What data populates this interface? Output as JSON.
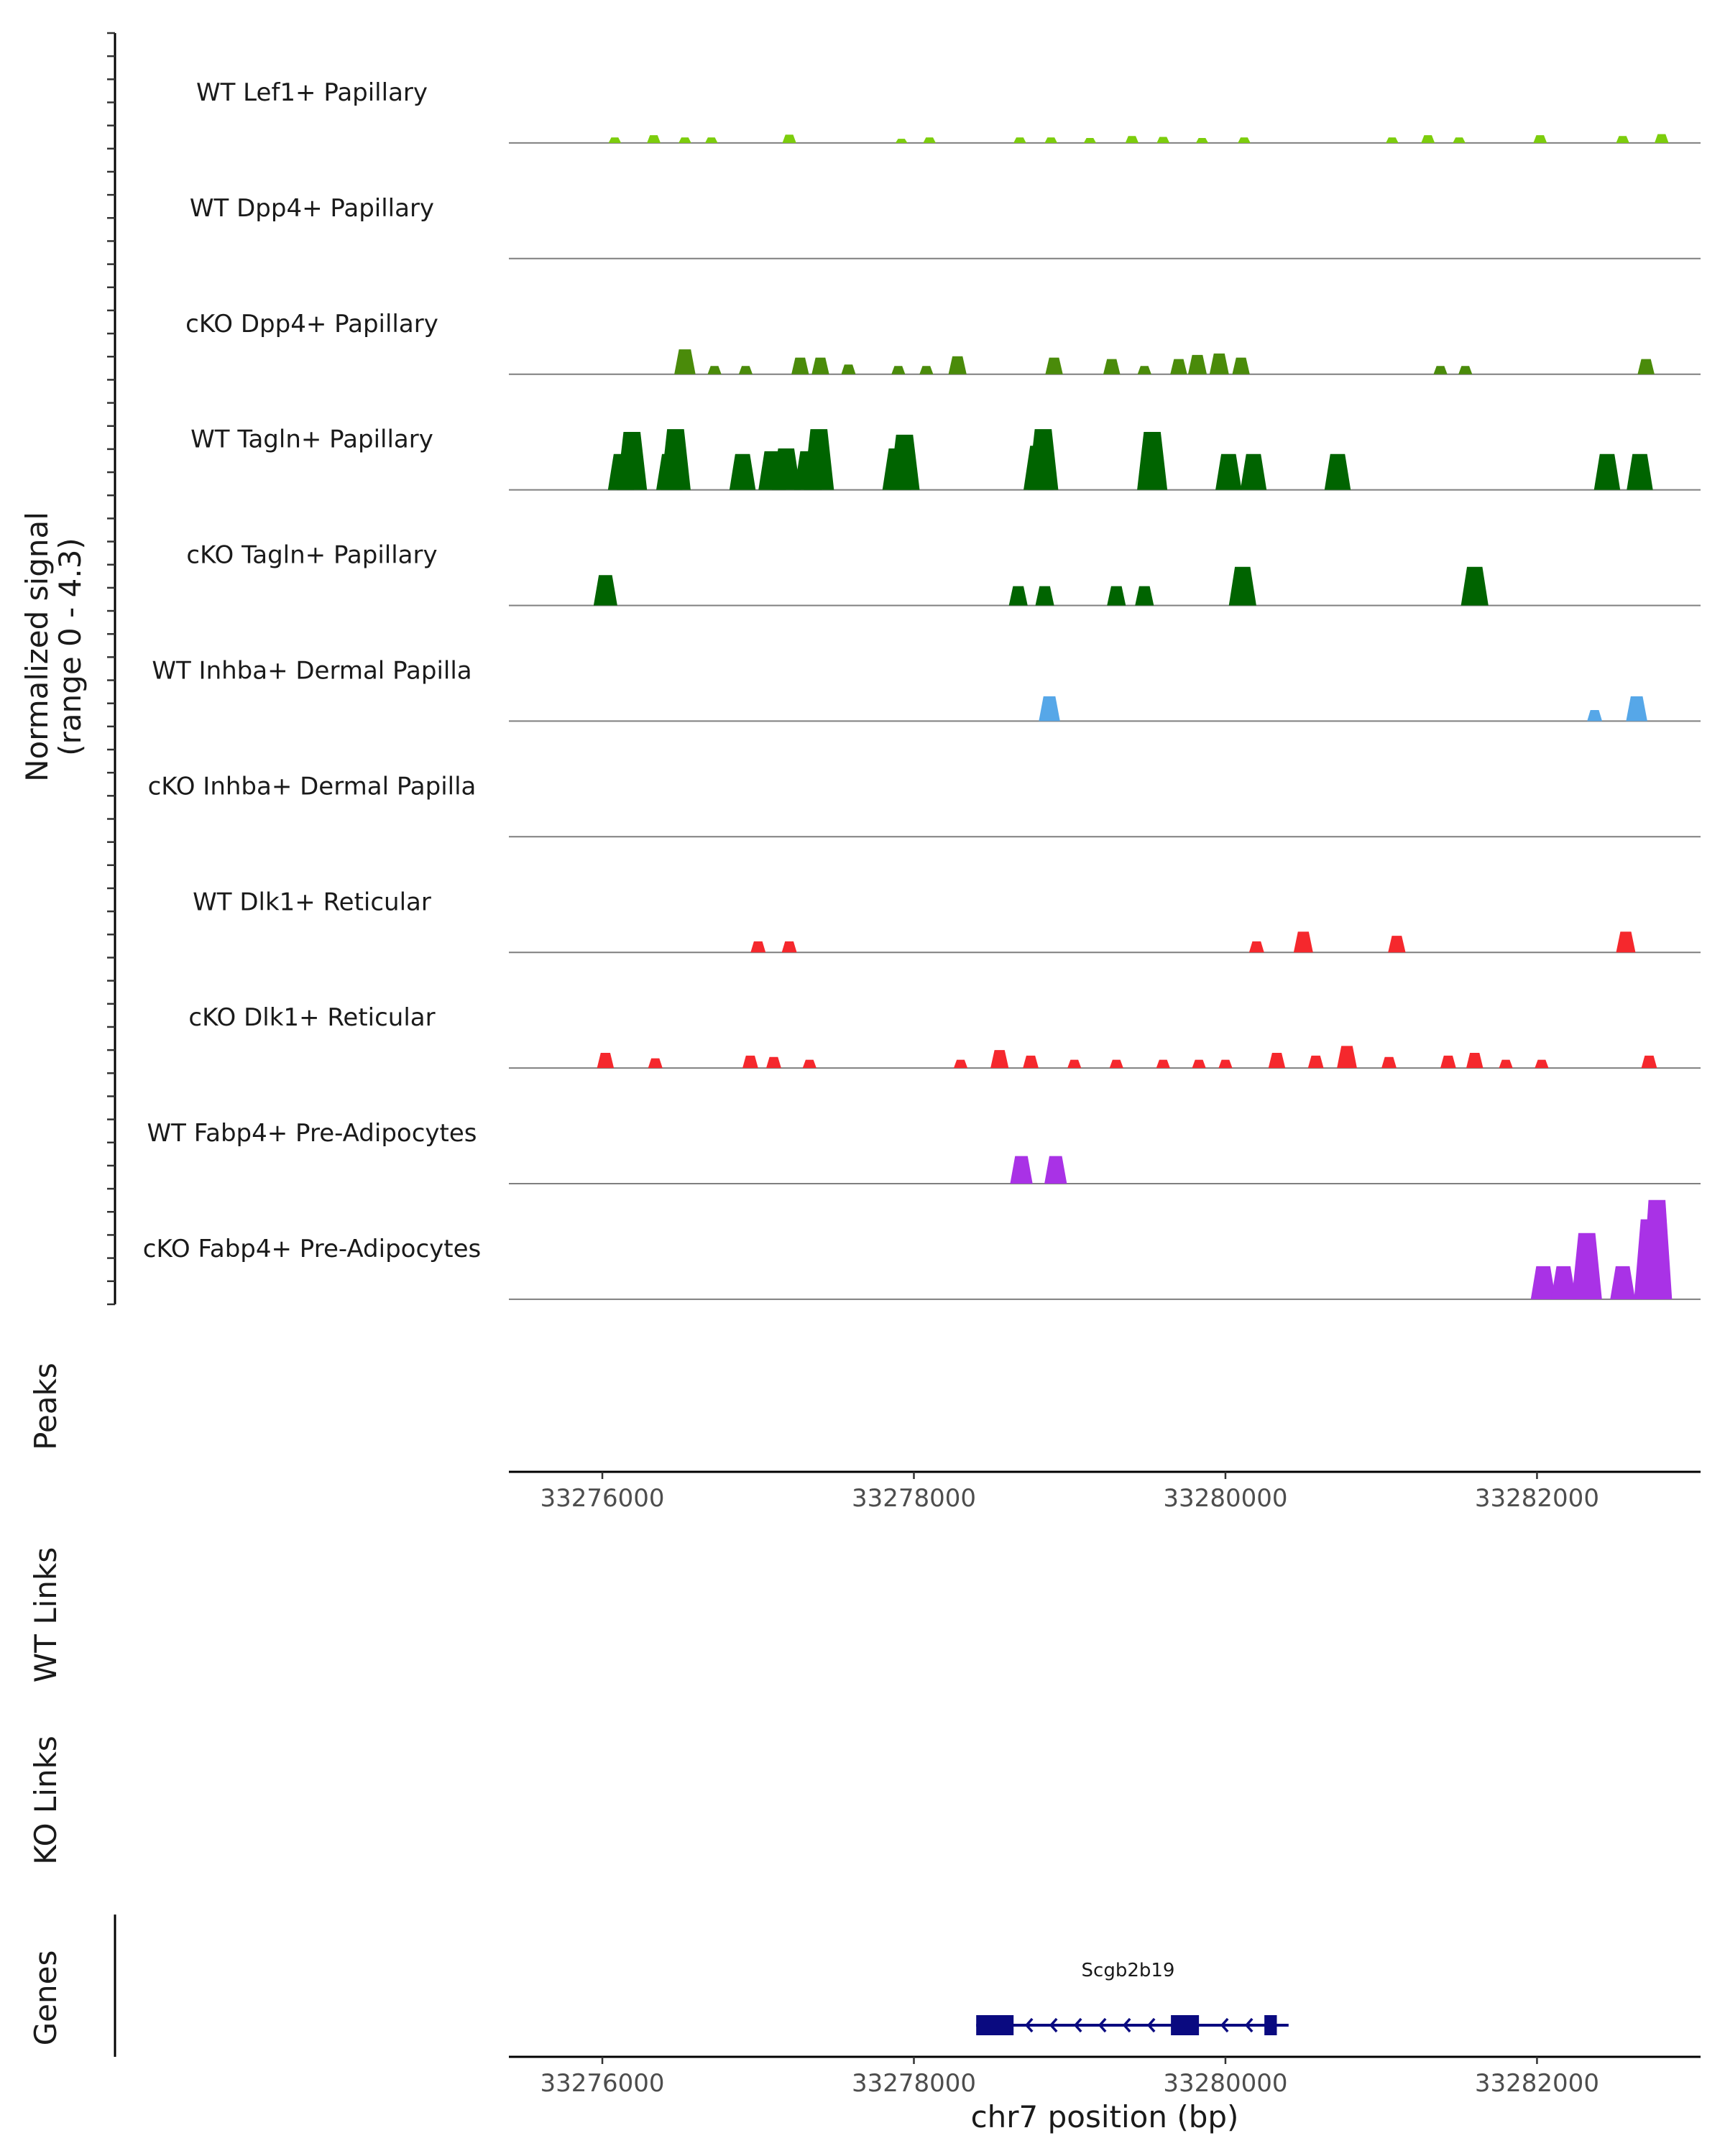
{
  "chart_data": {
    "type": "area",
    "title": "",
    "xlabel": "chr7 position (bp)",
    "ylabel": "Normalized signal\n(range 0 - 4.3)",
    "xlim": [
      33275400,
      33283050
    ],
    "ylim": [
      0,
      4.3
    ],
    "x_ticks": [
      "33276000",
      "33278000",
      "33280000",
      "33282000"
    ],
    "x_tick_values": [
      33276000,
      33278000,
      33280000,
      33282000
    ],
    "track_labels": {
      "peaks": "Peaks",
      "wt_links": "WT Links",
      "ko_links": "KO Links",
      "genes": "Genes"
    },
    "series": [
      {
        "name": "WT Lef1+ Papillary",
        "color": "#7CCD0C",
        "peaks": [
          [
            33276080,
            0.2
          ],
          [
            33276330,
            0.28
          ],
          [
            33276530,
            0.2
          ],
          [
            33276700,
            0.2
          ],
          [
            33277200,
            0.3
          ],
          [
            33277920,
            0.15
          ],
          [
            33278100,
            0.2
          ],
          [
            33278680,
            0.2
          ],
          [
            33278880,
            0.2
          ],
          [
            33279130,
            0.18
          ],
          [
            33279400,
            0.25
          ],
          [
            33279600,
            0.22
          ],
          [
            33279850,
            0.18
          ],
          [
            33280120,
            0.2
          ],
          [
            33281070,
            0.2
          ],
          [
            33281300,
            0.28
          ],
          [
            33281500,
            0.2
          ],
          [
            33282020,
            0.28
          ],
          [
            33282550,
            0.25
          ],
          [
            33282800,
            0.32
          ]
        ]
      },
      {
        "name": "WT Dpp4+ Papillary",
        "color": "#7CCD0C",
        "peaks": []
      },
      {
        "name": "cKO Dpp4+ Papillary",
        "color": "#4A8B0A",
        "peaks": [
          [
            33276530,
            0.9
          ],
          [
            33276720,
            0.3
          ],
          [
            33276920,
            0.3
          ],
          [
            33277270,
            0.6
          ],
          [
            33277400,
            0.6
          ],
          [
            33277580,
            0.35
          ],
          [
            33277900,
            0.3
          ],
          [
            33278080,
            0.3
          ],
          [
            33278280,
            0.65
          ],
          [
            33278900,
            0.6
          ],
          [
            33279270,
            0.55
          ],
          [
            33279480,
            0.3
          ],
          [
            33279700,
            0.55
          ],
          [
            33279820,
            0.7
          ],
          [
            33279960,
            0.75
          ],
          [
            33280100,
            0.6
          ],
          [
            33281380,
            0.3
          ],
          [
            33281540,
            0.3
          ],
          [
            33282700,
            0.55
          ]
        ]
      },
      {
        "name": "WT Tagln+ Papillary",
        "color": "#006400",
        "peaks": [
          [
            33276120,
            1.3
          ],
          [
            33276190,
            2.1
          ],
          [
            33276430,
            1.3
          ],
          [
            33276470,
            2.2
          ],
          [
            33276900,
            1.3
          ],
          [
            33277090,
            1.4
          ],
          [
            33277180,
            1.5
          ],
          [
            33277320,
            1.4
          ],
          [
            33277390,
            2.2
          ],
          [
            33277890,
            1.5
          ],
          [
            33277940,
            2.0
          ],
          [
            33278800,
            1.6
          ],
          [
            33278830,
            2.2
          ],
          [
            33279530,
            2.1
          ],
          [
            33280020,
            1.3
          ],
          [
            33280180,
            1.3
          ],
          [
            33280720,
            1.3
          ],
          [
            33282450,
            1.3
          ],
          [
            33282660,
            1.3
          ]
        ]
      },
      {
        "name": "cKO Tagln+ Papillary",
        "color": "#006400",
        "peaks": [
          [
            33276020,
            1.1
          ],
          [
            33278670,
            0.7
          ],
          [
            33278840,
            0.7
          ],
          [
            33279300,
            0.7
          ],
          [
            33279480,
            0.7
          ],
          [
            33280110,
            1.4
          ],
          [
            33281600,
            1.4
          ]
        ]
      },
      {
        "name": "WT Inhba+ Dermal Papilla",
        "color": "#56A7E8",
        "peaks": [
          [
            33278870,
            0.9
          ],
          [
            33282370,
            0.4
          ],
          [
            33282640,
            0.9
          ]
        ]
      },
      {
        "name": "cKO Inhba+ Dermal Papilla",
        "color": "#56A7E8",
        "peaks": []
      },
      {
        "name": "WT Dlk1+ Reticular",
        "color": "#F5282D",
        "peaks": [
          [
            33277000,
            0.4
          ],
          [
            33277200,
            0.4
          ],
          [
            33280200,
            0.4
          ],
          [
            33280500,
            0.75
          ],
          [
            33281100,
            0.6
          ],
          [
            33282570,
            0.75
          ]
        ]
      },
      {
        "name": "cKO Dlk1+ Reticular",
        "color": "#F5282D",
        "peaks": [
          [
            33276020,
            0.55
          ],
          [
            33276340,
            0.35
          ],
          [
            33276950,
            0.45
          ],
          [
            33277100,
            0.4
          ],
          [
            33277330,
            0.3
          ],
          [
            33278300,
            0.3
          ],
          [
            33278550,
            0.65
          ],
          [
            33278750,
            0.45
          ],
          [
            33279030,
            0.3
          ],
          [
            33279300,
            0.3
          ],
          [
            33279600,
            0.3
          ],
          [
            33279830,
            0.3
          ],
          [
            33280000,
            0.3
          ],
          [
            33280330,
            0.55
          ],
          [
            33280580,
            0.45
          ],
          [
            33280780,
            0.8
          ],
          [
            33281050,
            0.4
          ],
          [
            33281430,
            0.45
          ],
          [
            33281600,
            0.55
          ],
          [
            33281800,
            0.3
          ],
          [
            33282030,
            0.3
          ],
          [
            33282720,
            0.45
          ]
        ]
      },
      {
        "name": "WT Fabp4+ Pre-Adipocytes",
        "color": "#A932E6",
        "peaks": [
          [
            33278690,
            1.0
          ],
          [
            33278910,
            1.0
          ]
        ]
      },
      {
        "name": "cKO Fabp4+ Pre-Adipocytes",
        "color": "#A932E6",
        "peaks": [
          [
            33282040,
            1.2
          ],
          [
            33282170,
            1.2
          ],
          [
            33282320,
            2.4
          ],
          [
            33282550,
            1.2
          ],
          [
            33282720,
            2.9
          ],
          [
            33282770,
            3.6
          ]
        ]
      }
    ],
    "genes": [
      {
        "name": "Scgb2b19",
        "start": 33278400,
        "end": 33280350,
        "strand": "-",
        "exons": [
          [
            33278400,
            33278640
          ],
          [
            33279650,
            33279830
          ],
          [
            33280250,
            33280330
          ]
        ]
      }
    ]
  }
}
